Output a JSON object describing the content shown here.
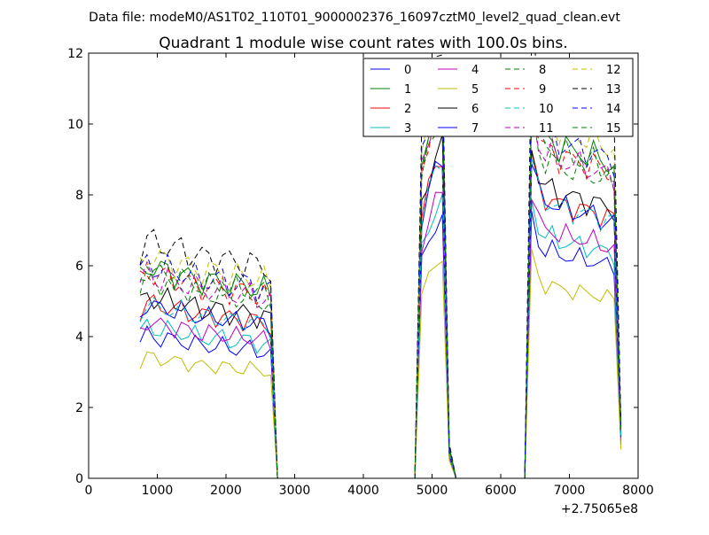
{
  "figure": {
    "suptitle": "Data file: modeM0/AS1T02_110T01_9000002376_16097cztM0_level2_quad_clean.evt"
  },
  "chart_data": {
    "type": "line",
    "title": "Quadrant 1 module wise count rates with 100.0s bins.",
    "xlabel": "",
    "ylabel": "",
    "x_offset_label": "+2.75065e8",
    "xlim": [
      0,
      8000
    ],
    "ylim": [
      0,
      12
    ],
    "xticks": [
      0,
      1000,
      2000,
      3000,
      4000,
      5000,
      6000,
      7000,
      8000
    ],
    "yticks": [
      0,
      2,
      4,
      6,
      8,
      10,
      12
    ],
    "grid": false,
    "legend_position": "top-right",
    "legend_columns": 4,
    "x": [
      750,
      850,
      950,
      1050,
      1150,
      1250,
      1350,
      1450,
      1550,
      1650,
      1750,
      1850,
      1950,
      2050,
      2150,
      2250,
      2350,
      2450,
      2550,
      2650,
      2750,
      2850,
      4750,
      4850,
      4950,
      5050,
      5150,
      5250,
      5350,
      6250,
      6350,
      6450,
      6550,
      6650,
      6750,
      6850,
      6950,
      7050,
      7150,
      7250,
      7350,
      7450,
      7550,
      7650,
      7750
    ],
    "profile": [
      0.52,
      0.55,
      0.54,
      0.53,
      0.54,
      0.52,
      0.53,
      0.51,
      0.52,
      0.5,
      0.51,
      0.5,
      0.51,
      0.49,
      0.5,
      0.49,
      0.5,
      0.48,
      0.49,
      0.47,
      0.0,
      0.0,
      0.0,
      0.82,
      0.9,
      0.97,
      1.0,
      0.08,
      0.0,
      0.0,
      0.0,
      1.0,
      0.91,
      0.86,
      0.88,
      0.84,
      0.86,
      0.83,
      0.85,
      0.82,
      0.84,
      0.81,
      0.82,
      0.8,
      0.13
    ],
    "series": [
      {
        "name": "0",
        "color": "#0000ff",
        "dash": "solid",
        "level": 6.6
      },
      {
        "name": "1",
        "color": "#008000",
        "dash": "solid",
        "level": 9.8
      },
      {
        "name": "2",
        "color": "#ff0000",
        "dash": "solid",
        "level": 8.1
      },
      {
        "name": "3",
        "color": "#00bfbf",
        "dash": "solid",
        "level": 7.0
      },
      {
        "name": "4",
        "color": "#bf00bf",
        "dash": "solid",
        "level": 7.2
      },
      {
        "name": "5",
        "color": "#bfbf00",
        "dash": "solid",
        "level": 5.6
      },
      {
        "name": "6",
        "color": "#000000",
        "dash": "solid",
        "level": 8.4
      },
      {
        "name": "7",
        "color": "#0000ff",
        "dash": "solid",
        "level": 8.0
      },
      {
        "name": "8",
        "color": "#008000",
        "dash": "dashed",
        "level": 9.2
      },
      {
        "name": "9",
        "color": "#ff0000",
        "dash": "dashed",
        "level": 9.5
      },
      {
        "name": "10",
        "color": "#00bfbf",
        "dash": "dashed",
        "level": 8.0
      },
      {
        "name": "11",
        "color": "#bf00bf",
        "dash": "dashed",
        "level": 9.4
      },
      {
        "name": "12",
        "color": "#bfbf00",
        "dash": "dashed",
        "level": 10.3
      },
      {
        "name": "13",
        "color": "#000000",
        "dash": "dashed",
        "level": 11.0
      },
      {
        "name": "14",
        "color": "#0000ff",
        "dash": "dashed",
        "level": 9.9
      },
      {
        "name": "15",
        "color": "#008000",
        "dash": "dashed",
        "level": 9.6
      }
    ]
  }
}
